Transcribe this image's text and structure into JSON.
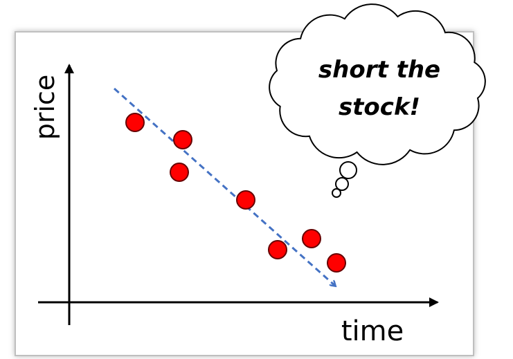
{
  "axes": {
    "y_label": "price",
    "x_label": "time"
  },
  "callout": {
    "lines": [
      "short the",
      "stock!"
    ]
  }
}
